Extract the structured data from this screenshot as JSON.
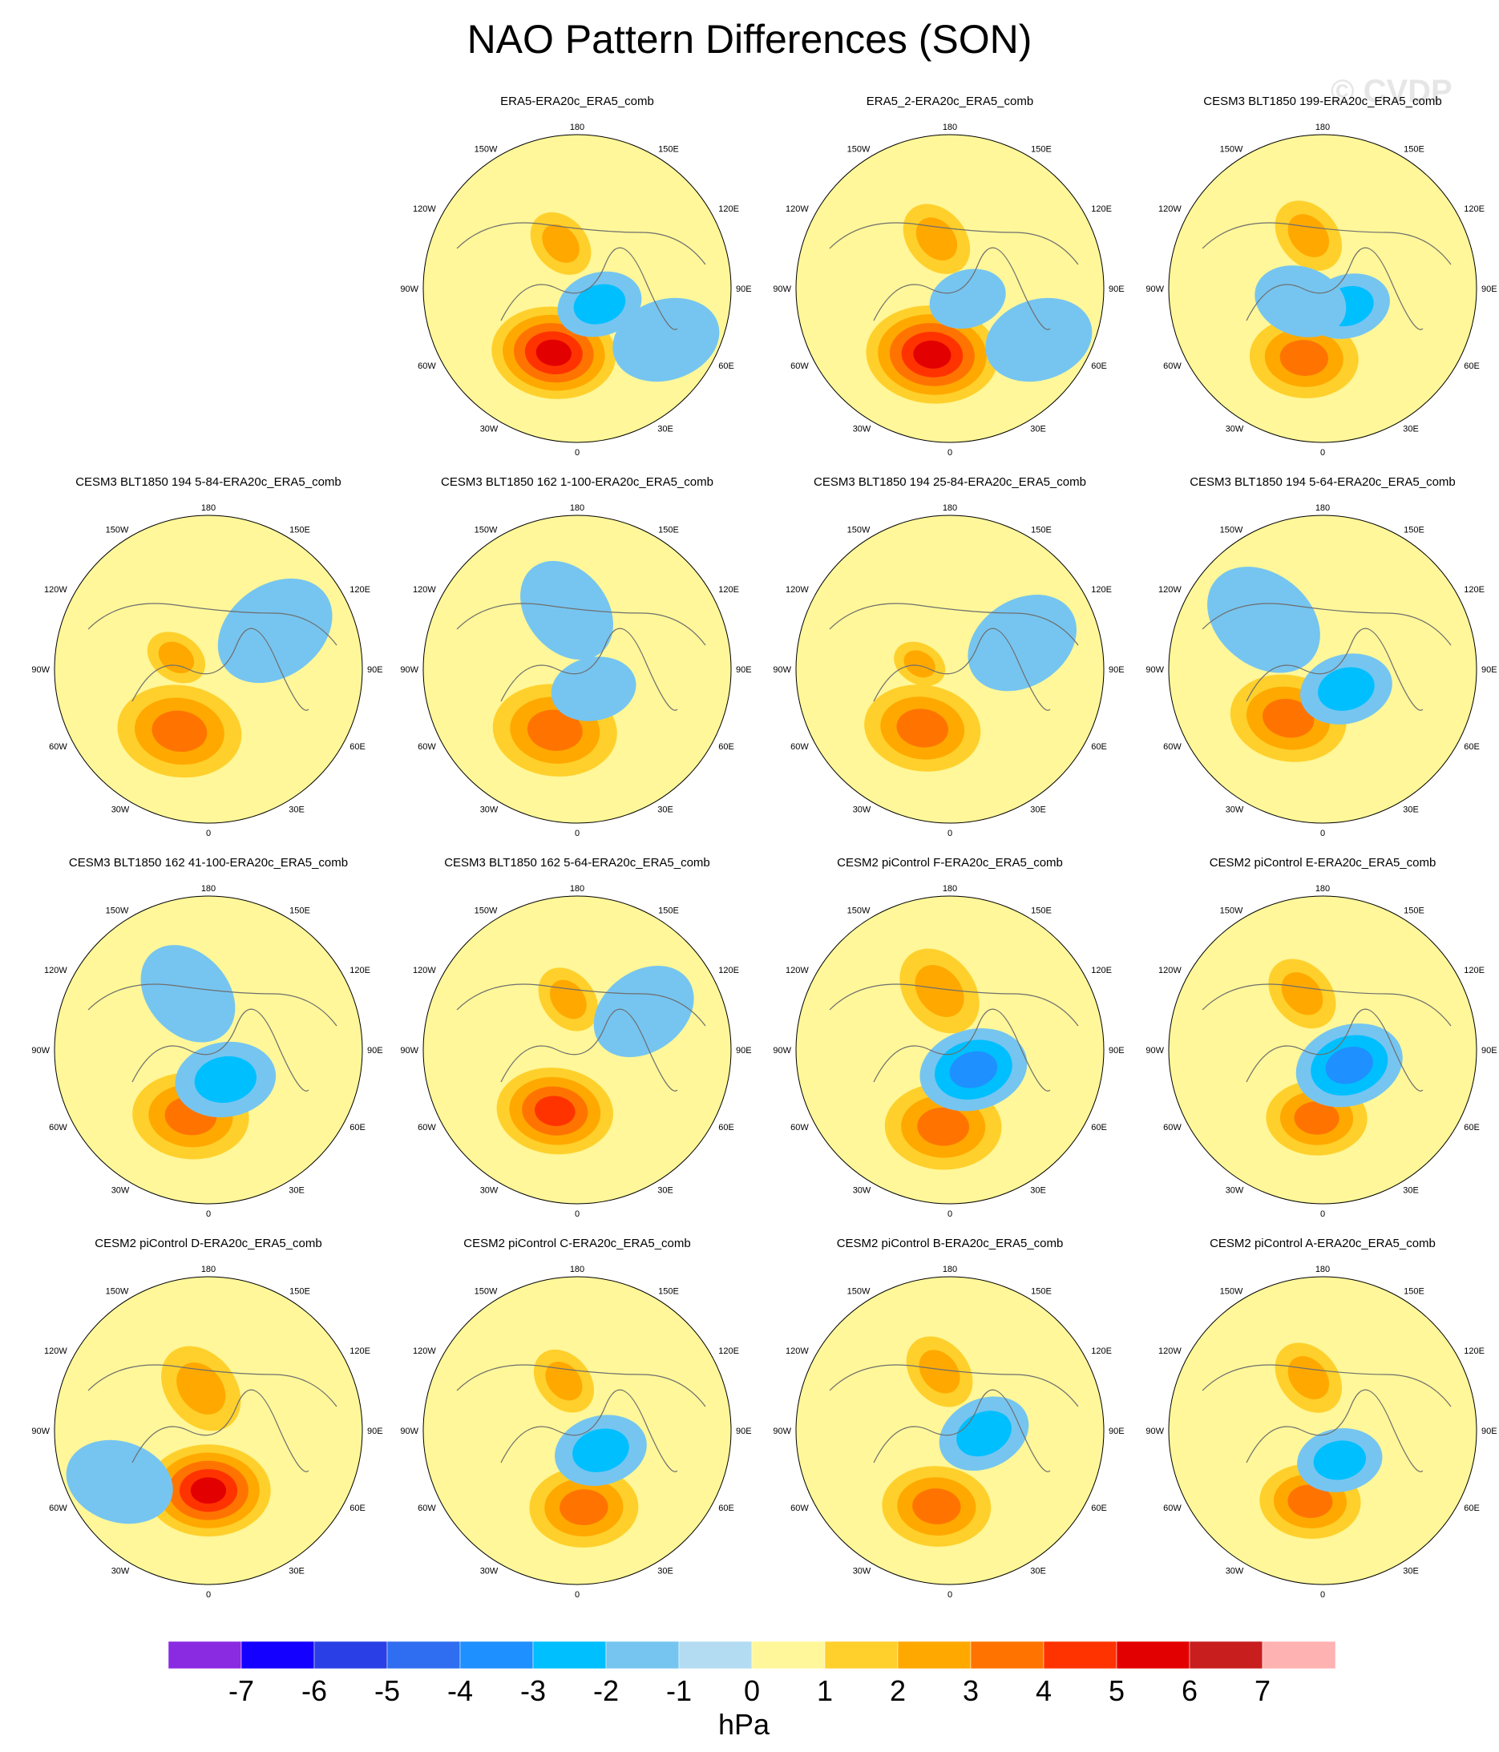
{
  "title": "NAO Pattern Differences (SON)",
  "watermark": "© CVDP",
  "lon_labels": {
    "top": "180",
    "bottom": "0",
    "upper_left": "150W",
    "upper_right": "150E",
    "left_upper": "120W",
    "right_upper": "120E",
    "left": "90W",
    "right": "90E",
    "left_lower": "60W",
    "right_lower": "60E",
    "lower_left": "30W",
    "lower_right": "30E"
  },
  "panels": [
    {
      "title": "ERA5-ERA20c_ERA5_comb",
      "features": [
        {
          "lat": 50,
          "lon": -20,
          "v": 5,
          "r": 0.16
        },
        {
          "lat": 74,
          "lon": 55,
          "v": -2,
          "r": 0.11
        },
        {
          "lat": 62,
          "lon": -160,
          "v": 2,
          "r": 0.09
        },
        {
          "lat": 30,
          "lon": 60,
          "v": -1,
          "r": 0.14
        }
      ]
    },
    {
      "title": "ERA5_2-ERA20c_ERA5_comb",
      "features": [
        {
          "lat": 50,
          "lon": -15,
          "v": 5,
          "r": 0.17
        },
        {
          "lat": 78,
          "lon": 60,
          "v": -1,
          "r": 0.1
        },
        {
          "lat": 60,
          "lon": -165,
          "v": 2,
          "r": 0.1
        },
        {
          "lat": 30,
          "lon": 60,
          "v": -1,
          "r": 0.14
        }
      ]
    },
    {
      "title": "CESM3 BLT1850 199-ERA20c_ERA5_comb",
      "features": [
        {
          "lat": 48,
          "lon": -15,
          "v": 3,
          "r": 0.14
        },
        {
          "lat": 72,
          "lon": 55,
          "v": -2,
          "r": 0.11
        },
        {
          "lat": 58,
          "lon": -165,
          "v": 2,
          "r": 0.1
        },
        {
          "lat": 75,
          "lon": -60,
          "v": -1,
          "r": 0.12
        }
      ]
    },
    {
      "title": "CESM3 BLT1850 194 5-84-ERA20c_ERA5_comb",
      "features": [
        {
          "lat": 50,
          "lon": -25,
          "v": 3,
          "r": 0.16
        },
        {
          "lat": 70,
          "lon": -110,
          "v": 2,
          "r": 0.08
        },
        {
          "lat": 45,
          "lon": 120,
          "v": -1,
          "r": 0.16
        }
      ]
    },
    {
      "title": "CESM3 BLT1850 162 1-100-ERA20c_ERA5_comb",
      "features": [
        {
          "lat": 52,
          "lon": -20,
          "v": 3,
          "r": 0.16
        },
        {
          "lat": 75,
          "lon": 40,
          "v": -1,
          "r": 0.11
        },
        {
          "lat": 55,
          "lon": -170,
          "v": -1,
          "r": 0.14
        }
      ]
    },
    {
      "title": "CESM3 BLT1850 194 25-84-ERA20c_ERA5_comb",
      "features": [
        {
          "lat": 52,
          "lon": -25,
          "v": 3,
          "r": 0.15
        },
        {
          "lat": 72,
          "lon": -100,
          "v": 2,
          "r": 0.07
        },
        {
          "lat": 45,
          "lon": 110,
          "v": -1,
          "r": 0.15
        }
      ]
    },
    {
      "title": "CESM3 BLT1850 194 5-64-ERA20c_ERA5_comb",
      "features": [
        {
          "lat": 55,
          "lon": -35,
          "v": 3,
          "r": 0.15
        },
        {
          "lat": 72,
          "lon": 50,
          "v": -2,
          "r": 0.12
        },
        {
          "lat": 45,
          "lon": -130,
          "v": -1,
          "r": 0.16
        }
      ]
    },
    {
      "title": "CESM3 BLT1850 162 41-100-ERA20c_ERA5_comb",
      "features": [
        {
          "lat": 50,
          "lon": -15,
          "v": 3,
          "r": 0.15
        },
        {
          "lat": 70,
          "lon": 30,
          "v": -2,
          "r": 0.13
        },
        {
          "lat": 55,
          "lon": -160,
          "v": -1,
          "r": 0.14
        }
      ]
    },
    {
      "title": "CESM3 BLT1850 162 5-64-ERA20c_ERA5_comb",
      "features": [
        {
          "lat": 52,
          "lon": -20,
          "v": 4,
          "r": 0.15
        },
        {
          "lat": 60,
          "lon": -170,
          "v": 2,
          "r": 0.09
        },
        {
          "lat": 45,
          "lon": 120,
          "v": -1,
          "r": 0.14
        }
      ]
    },
    {
      "title": "CESM2 piControl F-ERA20c_ERA5_comb",
      "features": [
        {
          "lat": 45,
          "lon": -5,
          "v": 3,
          "r": 0.15
        },
        {
          "lat": 72,
          "lon": 50,
          "v": -3,
          "r": 0.14
        },
        {
          "lat": 55,
          "lon": -170,
          "v": 2,
          "r": 0.12
        }
      ]
    },
    {
      "title": "CESM2 piControl E-ERA20c_ERA5_comb",
      "features": [
        {
          "lat": 50,
          "lon": -5,
          "v": 3,
          "r": 0.13
        },
        {
          "lat": 72,
          "lon": 60,
          "v": -3,
          "r": 0.14
        },
        {
          "lat": 55,
          "lon": -160,
          "v": 2,
          "r": 0.1
        }
      ]
    },
    {
      "title": "CESM2 piControl D-ERA20c_ERA5_comb",
      "features": [
        {
          "lat": 55,
          "lon": 0,
          "v": 5,
          "r": 0.16
        },
        {
          "lat": 65,
          "lon": -170,
          "v": 2,
          "r": 0.12
        },
        {
          "lat": 30,
          "lon": -60,
          "v": -1,
          "r": 0.14
        }
      ]
    },
    {
      "title": "CESM2 piControl C-ERA20c_ERA5_comb",
      "features": [
        {
          "lat": 45,
          "lon": 5,
          "v": 3,
          "r": 0.14
        },
        {
          "lat": 72,
          "lon": 50,
          "v": -2,
          "r": 0.12
        },
        {
          "lat": 60,
          "lon": -165,
          "v": 2,
          "r": 0.09
        }
      ]
    },
    {
      "title": "CESM2 piControl B-ERA20c_ERA5_comb",
      "features": [
        {
          "lat": 45,
          "lon": -10,
          "v": 3,
          "r": 0.14
        },
        {
          "lat": 70,
          "lon": 85,
          "v": -2,
          "r": 0.12
        },
        {
          "lat": 55,
          "lon": -170,
          "v": 2,
          "r": 0.1
        }
      ]
    },
    {
      "title": "CESM2 piControl A-ERA20c_ERA5_comb",
      "features": [
        {
          "lat": 48,
          "lon": -10,
          "v": 3,
          "r": 0.13
        },
        {
          "lat": 70,
          "lon": 30,
          "v": -2,
          "r": 0.11
        },
        {
          "lat": 58,
          "lon": -165,
          "v": 2,
          "r": 0.1
        }
      ]
    }
  ],
  "colorbar": {
    "units": "hPa",
    "ticks": [
      "-7",
      "-6",
      "-5",
      "-4",
      "-3",
      "-2",
      "-1",
      "0",
      "1",
      "2",
      "3",
      "4",
      "5",
      "6",
      "7"
    ],
    "colors": [
      "#8a2be2",
      "#1400ff",
      "#2a3fe6",
      "#2f6ef0",
      "#1e90ff",
      "#00bfff",
      "#76c5f0",
      "#b3dcf2",
      "#fff799",
      "#ffd02c",
      "#ffa900",
      "#ff7400",
      "#ff3300",
      "#e30000",
      "#c81e1e",
      "#ffb2b2"
    ]
  }
}
